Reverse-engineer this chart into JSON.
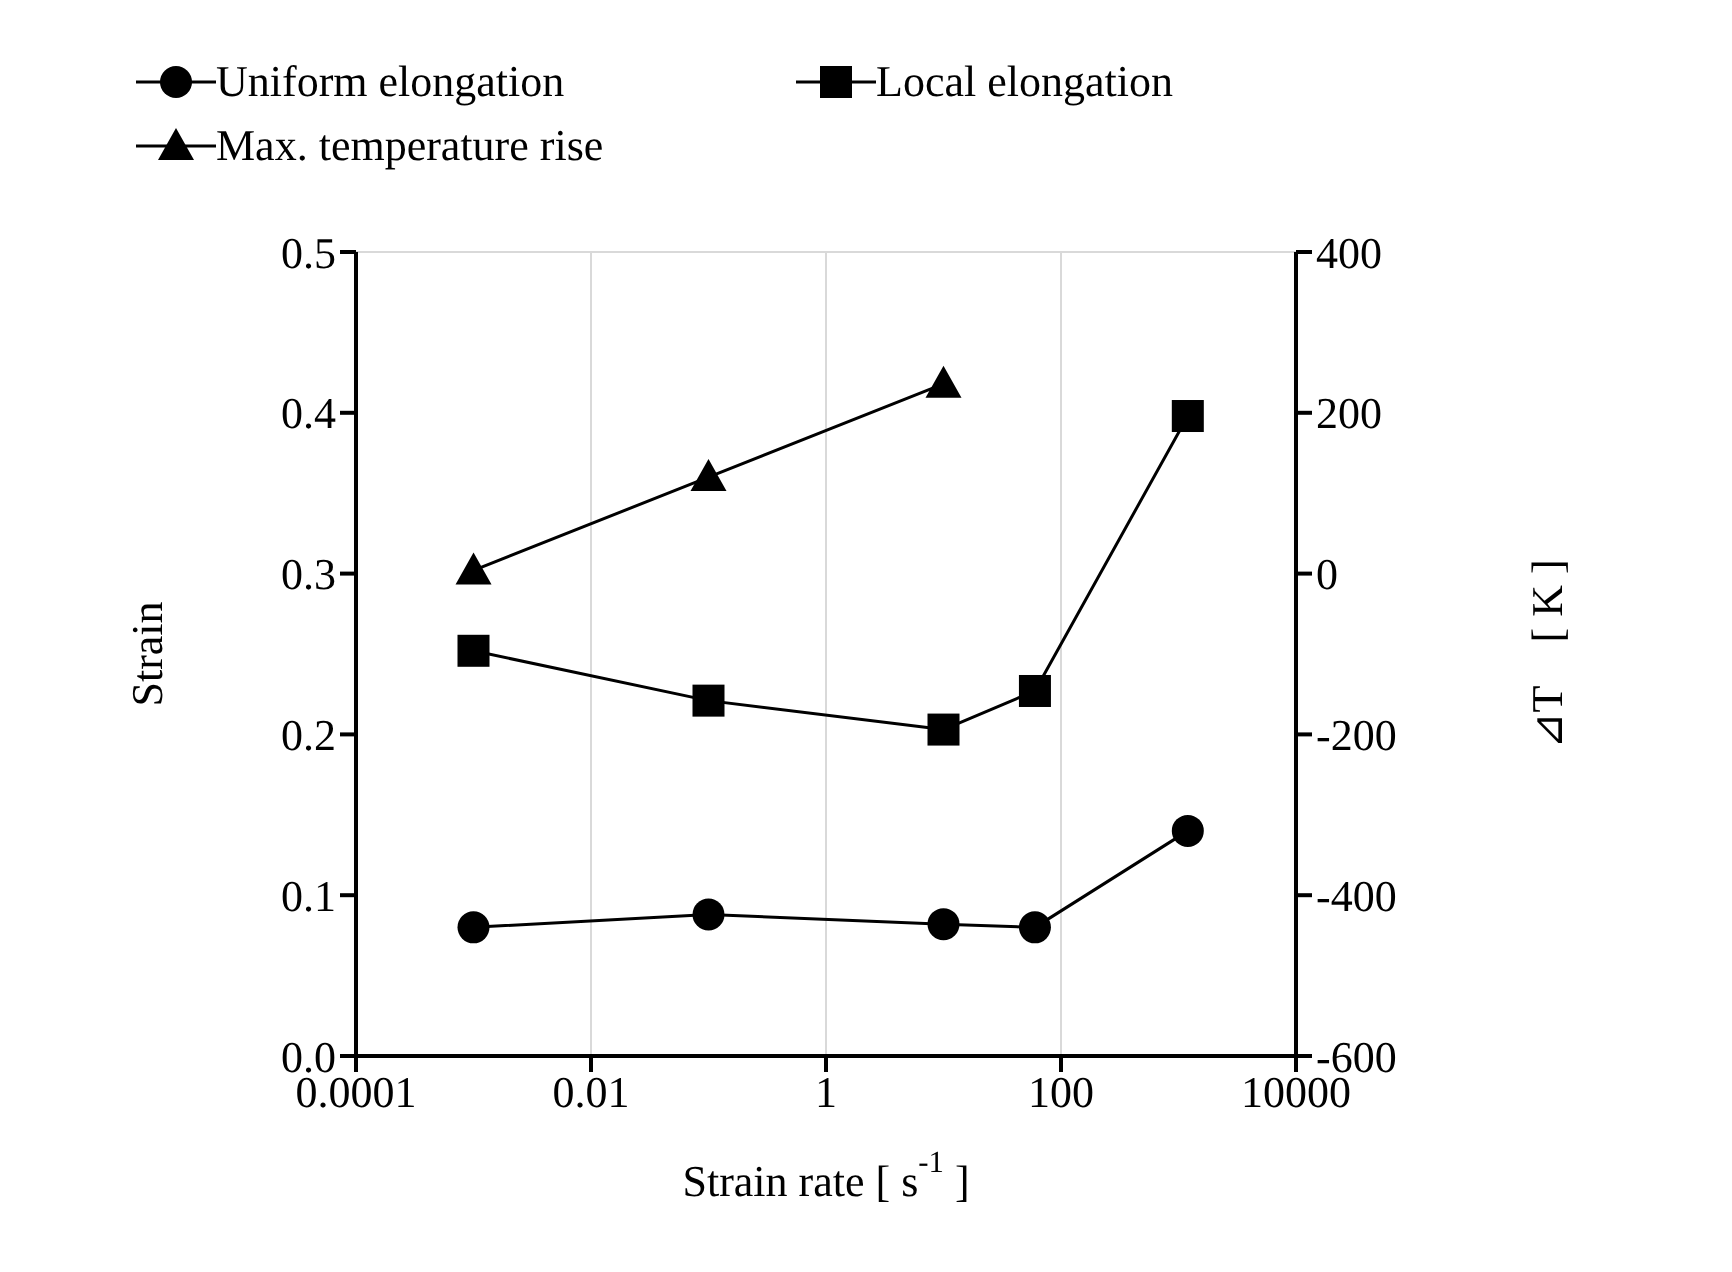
{
  "chart_data": {
    "type": "line",
    "xlabel": "Strain rate [ s$^{-1}$ ]",
    "ylabel": "Strain",
    "y2label": "⊿T　[ K ]",
    "log": "x",
    "grid": true,
    "legend": "top",
    "line_style": "solid",
    "x": [
      0.001,
      0.1,
      10,
      60,
      1200
    ],
    "xlim": [
      0.0001,
      10000
    ],
    "xticks": [
      0.0001,
      0.01,
      1,
      100,
      10000
    ],
    "ylim": [
      0,
      0.5
    ],
    "yticks": [
      {
        "value": 0,
        "label": "0.0"
      },
      {
        "value": 0.1,
        "label": "0.1"
      },
      {
        "value": 0.2,
        "label": "0.2"
      },
      {
        "value": 0.3,
        "label": "0.3"
      },
      {
        "value": 0.4,
        "label": "0.4"
      },
      {
        "value": 0.5,
        "label": "0.5"
      }
    ],
    "y2lim": [
      -600,
      400
    ],
    "y2ticks": [
      -600,
      -400,
      -200,
      0,
      200,
      400
    ],
    "series": [
      {
        "name": "Uniform elongation",
        "color": "#000000",
        "marker": "circle",
        "values": [
          0.08,
          0.088,
          0.082,
          0.08,
          0.14
        ]
      },
      {
        "name": "Local elongation",
        "color": "#000000",
        "marker": "square",
        "values": [
          0.252,
          0.221,
          0.203,
          0.227,
          0.398
        ]
      },
      {
        "name": "Max. temperature rise",
        "color": "#000000",
        "marker": "triangle",
        "axis": "y2",
        "x": [
          0.001,
          0.1,
          10
        ],
        "values": [
          4,
          120,
          236
        ]
      }
    ]
  }
}
